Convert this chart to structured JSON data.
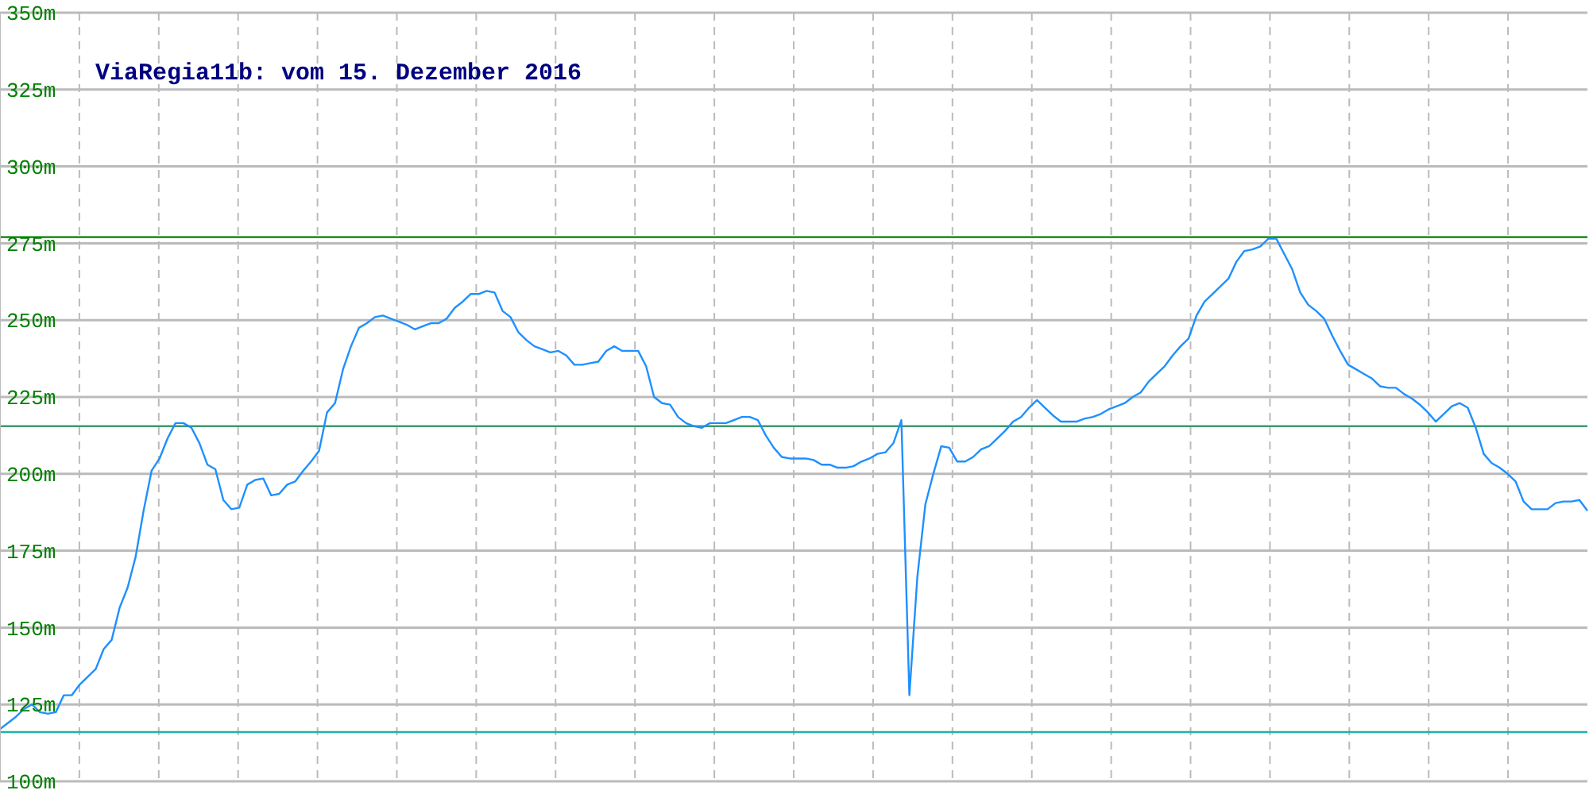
{
  "chart_data": {
    "type": "line",
    "title": "ViaRegia11b: vom 15. Dezember 2016",
    "categories": [
      null,
      null,
      null,
      null,
      null,
      null,
      null,
      null,
      null,
      null,
      null,
      null,
      null,
      null,
      null,
      null,
      null,
      null,
      null,
      null,
      null,
      null,
      null,
      null,
      null,
      null,
      null,
      null,
      null,
      null,
      null,
      null,
      null,
      null,
      null,
      null,
      null,
      null,
      null,
      null,
      null,
      null,
      null,
      null,
      null,
      null,
      null,
      null,
      null,
      null,
      null,
      null,
      null,
      null,
      null,
      null,
      null,
      null,
      null,
      null,
      null,
      null,
      null,
      null,
      null,
      null,
      null,
      null,
      null,
      null,
      null,
      null,
      null,
      null,
      null,
      null,
      null,
      null,
      null,
      null,
      null,
      null,
      null,
      null,
      null,
      null,
      null,
      null,
      null,
      null,
      null,
      null,
      null,
      null,
      null,
      null,
      null,
      null,
      null,
      null,
      null,
      null,
      null,
      null,
      null,
      null,
      null,
      null,
      null,
      null,
      null,
      null,
      null,
      null,
      null,
      null,
      null,
      null,
      null,
      null,
      null,
      null,
      null,
      null,
      null,
      null,
      null,
      null,
      null,
      null,
      null,
      null,
      null,
      null,
      null,
      null,
      null,
      null,
      null,
      null,
      null,
      null,
      null,
      null,
      null,
      null,
      null,
      null,
      null,
      null,
      null,
      null,
      null,
      null,
      null,
      null,
      null,
      null,
      null,
      null,
      null,
      null,
      null,
      null,
      null,
      null,
      null,
      null,
      null,
      null,
      null,
      null,
      null,
      null,
      null,
      null,
      null,
      null,
      null,
      null,
      null,
      null,
      null,
      null,
      null,
      null,
      null,
      null,
      null,
      null,
      null,
      null,
      null,
      null,
      null,
      null,
      null,
      null,
      null,
      null
    ],
    "series": [
      {
        "color": "#1e90ff",
        "values": [
          117,
          119,
          121,
          123.5,
          125,
          122.5,
          122,
          122.5,
          128,
          128,
          131.5,
          134,
          136.5,
          143,
          146,
          156.5,
          163,
          173,
          188,
          201,
          205,
          211.5,
          216.5,
          216.5,
          215,
          210,
          203,
          201.5,
          191.5,
          188.5,
          189,
          196.5,
          198,
          198.5,
          193,
          193.5,
          196.5,
          197.5,
          201,
          204,
          207.5,
          220,
          223,
          234,
          241.5,
          247.5,
          249,
          251,
          251.5,
          250.5,
          249.5,
          248.5,
          247,
          248,
          249,
          249,
          250.5,
          254,
          256,
          258.5,
          258.5,
          259.5,
          259,
          253,
          251,
          246,
          243.5,
          241.5,
          240.5,
          239.5,
          240,
          238.5,
          235.5,
          235.5,
          236,
          236.5,
          240,
          241.5,
          240,
          240,
          240,
          235,
          225,
          223,
          222.5,
          218.5,
          216.5,
          215.5,
          215,
          216.5,
          216.5,
          216.5,
          217.5,
          218.5,
          218.5,
          217.5,
          212.5,
          208.5,
          205.5,
          205,
          205,
          205,
          204.5,
          203,
          203,
          202,
          202,
          202.5,
          204,
          205,
          206.5,
          207,
          210,
          217.5,
          128,
          166.5,
          190,
          200,
          209,
          208.5,
          204,
          204,
          205.5,
          208,
          209,
          211.5,
          214,
          217,
          218.5,
          221.5,
          224,
          221.5,
          219,
          217,
          217,
          217,
          218,
          218.5,
          219.5,
          221,
          222,
          223,
          225,
          226.5,
          230,
          232.5,
          235,
          238.5,
          241.5,
          244,
          251.5,
          256,
          258.5,
          261,
          263.5,
          269,
          272.5,
          273,
          274,
          276.5,
          276.5,
          271.5,
          266.5,
          259,
          255,
          253,
          250.5,
          245,
          240,
          235.5,
          234,
          232.5,
          231,
          228.5,
          228,
          228,
          226,
          224.5,
          222.5,
          220,
          217,
          219.5,
          222,
          223,
          221.5,
          215,
          206.5,
          203.5,
          202,
          200,
          197.5,
          191,
          188.5,
          188.5,
          188.5,
          190.5,
          191,
          191,
          191.5,
          188
        ]
      }
    ],
    "ylim": [
      100,
      350
    ],
    "yticks": [
      {
        "value": 100,
        "label": "100m"
      },
      {
        "value": 125,
        "label": "125m"
      },
      {
        "value": 150,
        "label": "150m"
      },
      {
        "value": 175,
        "label": "175m"
      },
      {
        "value": 200,
        "label": "200m"
      },
      {
        "value": 225,
        "label": "225m"
      },
      {
        "value": 250,
        "label": "250m"
      },
      {
        "value": 275,
        "label": "275m"
      },
      {
        "value": 300,
        "label": "300m"
      },
      {
        "value": 325,
        "label": "325m"
      },
      {
        "value": 350,
        "label": "350m"
      }
    ],
    "ref_lines": [
      {
        "axis": "y",
        "value": 277,
        "color": "#008000"
      },
      {
        "axis": "y",
        "value": 215.5,
        "color": "#3c9a6e"
      },
      {
        "axis": "y",
        "value": 116,
        "color": "#20b2aa"
      }
    ],
    "grid": true,
    "marker": "none",
    "line_style": "solid"
  }
}
